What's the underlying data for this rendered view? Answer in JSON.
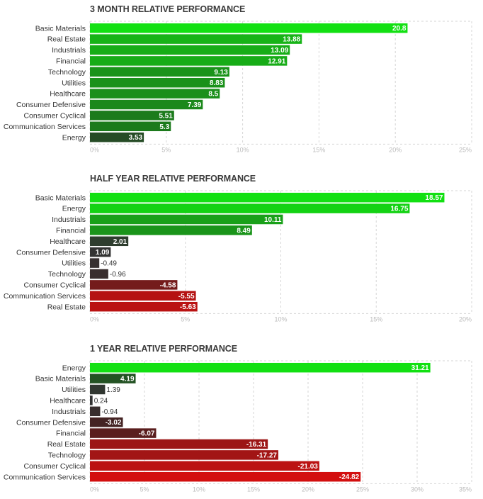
{
  "chart_data": [
    {
      "type": "bar",
      "orientation": "horizontal",
      "title": "3 MONTH RELATIVE PERFORMANCE",
      "categories": [
        "Basic Materials",
        "Real Estate",
        "Industrials",
        "Financial",
        "Technology",
        "Utilities",
        "Healthcare",
        "Consumer Defensive",
        "Consumer Cyclical",
        "Communication Services",
        "Energy"
      ],
      "values": [
        20.8,
        13.88,
        13.09,
        12.91,
        9.13,
        8.83,
        8.5,
        7.39,
        5.51,
        5.3,
        3.53
      ],
      "value_labels": [
        "20.8",
        "13.88",
        "13.09",
        "12.91",
        "9.13",
        "8.83",
        "8.5",
        "7.39",
        "5.51",
        "5.3",
        "3.53"
      ],
      "xlim": [
        0,
        25
      ],
      "ticks": [
        0,
        5,
        10,
        15,
        20,
        25
      ],
      "tick_labels": [
        "0%",
        "5%",
        "10%",
        "15%",
        "20%",
        "25%"
      ],
      "grid": true
    },
    {
      "type": "bar",
      "orientation": "horizontal",
      "title": "HALF YEAR RELATIVE PERFORMANCE",
      "categories": [
        "Basic Materials",
        "Energy",
        "Industrials",
        "Financial",
        "Healthcare",
        "Consumer Defensive",
        "Utilities",
        "Technology",
        "Consumer Cyclical",
        "Communication Services",
        "Real Estate"
      ],
      "values": [
        18.57,
        16.75,
        10.11,
        8.49,
        2.01,
        1.09,
        -0.49,
        -0.96,
        -4.58,
        -5.55,
        -5.63
      ],
      "value_labels": [
        "18.57",
        "16.75",
        "10.11",
        "8.49",
        "2.01",
        "1.09",
        "-0.49",
        "-0.96",
        "-4.58",
        "-5.55",
        "-5.63"
      ],
      "xlim": [
        0,
        20
      ],
      "ticks": [
        0,
        5,
        10,
        15,
        20
      ],
      "tick_labels": [
        "0%",
        "5%",
        "10%",
        "15%",
        "20%"
      ],
      "grid": true
    },
    {
      "type": "bar",
      "orientation": "horizontal",
      "title": "1 YEAR RELATIVE PERFORMANCE",
      "categories": [
        "Energy",
        "Basic Materials",
        "Utilities",
        "Healthcare",
        "Industrials",
        "Consumer Defensive",
        "Financial",
        "Real Estate",
        "Technology",
        "Consumer Cyclical",
        "Communication Services"
      ],
      "values": [
        31.21,
        4.19,
        1.39,
        0.24,
        -0.94,
        -3.02,
        -6.07,
        -16.31,
        -17.27,
        -21.03,
        -24.82
      ],
      "value_labels": [
        "31.21",
        "4.19",
        "1.39",
        "0.24",
        "-0.94",
        "-3.02",
        "-6.07",
        "-16.31",
        "-17.27",
        "-21.03",
        "-24.82"
      ],
      "xlim": [
        0,
        35
      ],
      "ticks": [
        0,
        5,
        10,
        15,
        20,
        25,
        30,
        35
      ],
      "tick_labels": [
        "0%",
        "5%",
        "10%",
        "15%",
        "20%",
        "25%",
        "30%",
        "35%"
      ],
      "grid": true
    }
  ]
}
